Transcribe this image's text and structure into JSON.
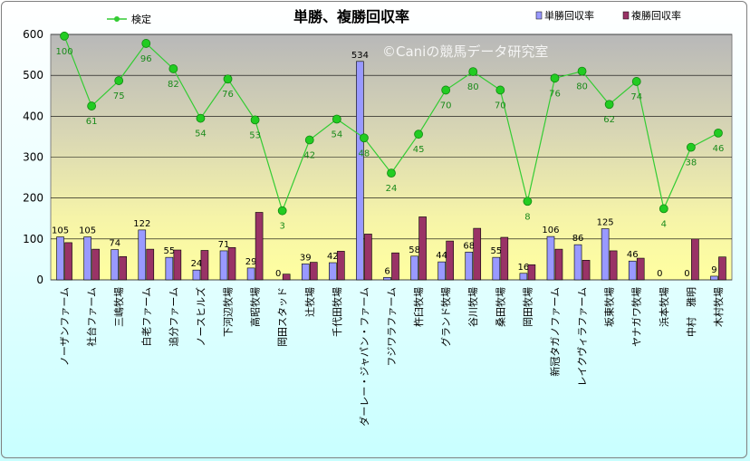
{
  "chart_data": {
    "type": "bar",
    "title": "単勝、複勝回収率",
    "watermark": "©Caniの競馬データ研究室",
    "ylim": [
      0,
      600
    ],
    "yticks": [
      0,
      100,
      200,
      300,
      400,
      500,
      600
    ],
    "grid": true,
    "legend_position": "top",
    "categories": [
      "ノーザンファーム",
      "社台ファーム",
      "三嶋牧場",
      "白老ファーム",
      "追分ファーム",
      "ノースヒルズ",
      "下河辺牧場",
      "高昭牧場",
      "岡田スタッド",
      "辻牧場",
      "千代田牧場",
      "ダーレー・ジャパン・ファーム",
      "フジワラファーム",
      "杵臼牧場",
      "グランド牧場",
      "谷川牧場",
      "桑田牧場",
      "岡田牧場",
      "新冠タガノファーム",
      "レイクヴィラファーム",
      "坂東牧場",
      "ヤナガワ牧場",
      "浜本牧場",
      "中村　雅明",
      "木村牧場"
    ],
    "series": [
      {
        "name": "単勝回収率",
        "type": "bar",
        "color": "#9999ff",
        "values": [
          105,
          105,
          74,
          122,
          55,
          24,
          71,
          29,
          0,
          39,
          42,
          534,
          6,
          58,
          44,
          68,
          55,
          16,
          106,
          86,
          125,
          46,
          0,
          0,
          9
        ]
      },
      {
        "name": "複勝回収率",
        "type": "bar",
        "color": "#993366",
        "values": [
          91,
          75,
          57,
          75,
          73,
          72,
          79,
          165,
          14,
          43,
          70,
          112,
          66,
          154,
          95,
          126,
          104,
          37,
          75,
          48,
          71,
          53,
          0,
          100,
          56
        ]
      },
      {
        "name": "検定",
        "type": "line",
        "color": "#33cc33",
        "values": [
          596,
          425,
          487,
          578,
          516,
          395,
          491,
          391,
          169,
          342,
          393,
          347,
          261,
          356,
          464,
          509,
          464,
          192,
          493,
          510,
          429,
          485,
          174,
          324,
          359
        ],
        "labels": [
          100,
          61,
          75,
          96,
          82,
          54,
          76,
          53,
          3,
          42,
          54,
          48,
          24,
          45,
          70,
          80,
          70,
          8,
          76,
          80,
          62,
          74,
          4,
          38,
          46
        ]
      }
    ]
  }
}
